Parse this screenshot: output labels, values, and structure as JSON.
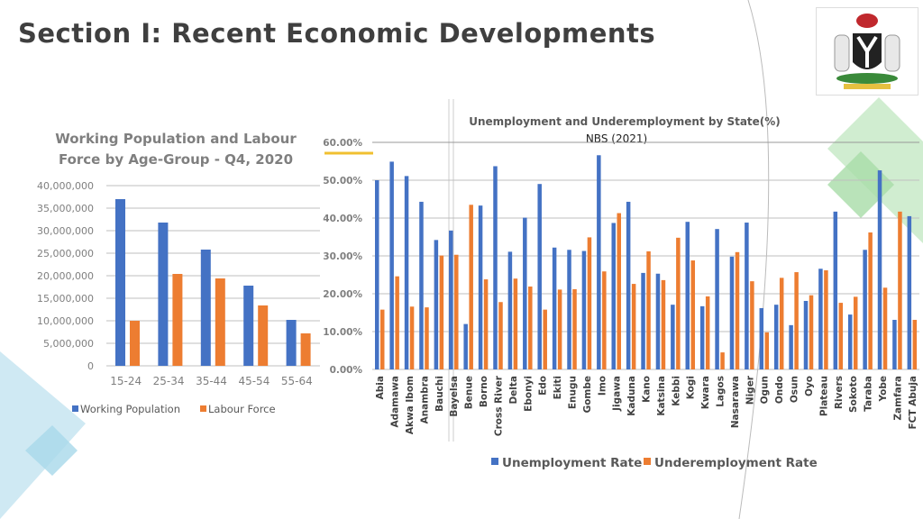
{
  "slide": {
    "title": "Section I: Recent Economic Developments",
    "logo": "Nigeria coat of arms"
  },
  "colors": {
    "blue": "#4472c4",
    "orange": "#ed7d31",
    "grid": "#bfbfbf",
    "text": "#595959"
  },
  "chart_data": [
    {
      "type": "bar",
      "title": "Working Population and Labour Force by Age-Group - Q4, 2020",
      "categories": [
        "15-24",
        "25-34",
        "35-44",
        "45-54",
        "55-64"
      ],
      "series": [
        {
          "name": "Working Population",
          "values": [
            37000000,
            31800000,
            25800000,
            17800000,
            10200000
          ]
        },
        {
          "name": "Labour Force",
          "values": [
            10000000,
            20400000,
            19400000,
            13400000,
            7200000
          ]
        }
      ],
      "yticks": [
        "0",
        "5,000,000",
        "10,000,000",
        "15,000,000",
        "20,000,000",
        "25,000,000",
        "30,000,000",
        "35,000,000",
        "40,000,000"
      ],
      "ylim": [
        0,
        40000000
      ],
      "grid": true,
      "legend": "bottom"
    },
    {
      "type": "bar",
      "title": "Unemployment and Underemployment by State(%)",
      "subtitle": "NBS (2021)",
      "categories": [
        "Abia",
        "Adamawa",
        "Akwa Ibom",
        "Anambra",
        "Bauchi",
        "Bayelsa",
        "Benue",
        "Borno",
        "Cross River",
        "Delta",
        "Ebonyi",
        "Edo",
        "Ekiti",
        "Enugu",
        "Gombe",
        "Imo",
        "Jigawa",
        "Kaduna",
        "Kano",
        "Katsina",
        "Kebbi",
        "Kogi",
        "Kwara",
        "Lagos",
        "Nasarawa",
        "Niger",
        "Ogun",
        "Ondo",
        "Osun",
        "Oyo",
        "Plateau",
        "Rivers",
        "Sokoto",
        "Taraba",
        "Yobe",
        "Zamfara",
        "FCT Abuja"
      ],
      "series": [
        {
          "name": "Unemployment Rate",
          "values": [
            50.0,
            54.9,
            51.1,
            44.3,
            34.2,
            36.7,
            12.0,
            43.3,
            53.7,
            31.1,
            40.1,
            49.0,
            32.2,
            31.6,
            31.3,
            56.6,
            38.7,
            44.3,
            25.5,
            25.3,
            17.1,
            39.0,
            16.7,
            37.1,
            29.8,
            38.8,
            16.2,
            17.1,
            11.7,
            18.1,
            26.6,
            41.7,
            14.5,
            31.6,
            52.6,
            13.1,
            40.5
          ]
        },
        {
          "name": "Underemployment Rate",
          "values": [
            15.8,
            24.6,
            16.6,
            16.4,
            30.1,
            30.3,
            43.5,
            23.8,
            17.8,
            24.0,
            21.9,
            15.8,
            21.1,
            21.2,
            34.9,
            25.9,
            41.3,
            22.6,
            31.2,
            23.6,
            34.8,
            28.8,
            19.3,
            4.5,
            31.0,
            23.3,
            9.8,
            24.2,
            25.7,
            19.6,
            26.2,
            17.6,
            19.2,
            36.2,
            21.6,
            41.7,
            13.1
          ]
        }
      ],
      "yticks": [
        "0.00%",
        "10.00%",
        "20.00%",
        "30.00%",
        "40.00%",
        "50.00%",
        "60.00%"
      ],
      "ylim": [
        0,
        60
      ],
      "grid": true,
      "legend": "bottom"
    }
  ]
}
